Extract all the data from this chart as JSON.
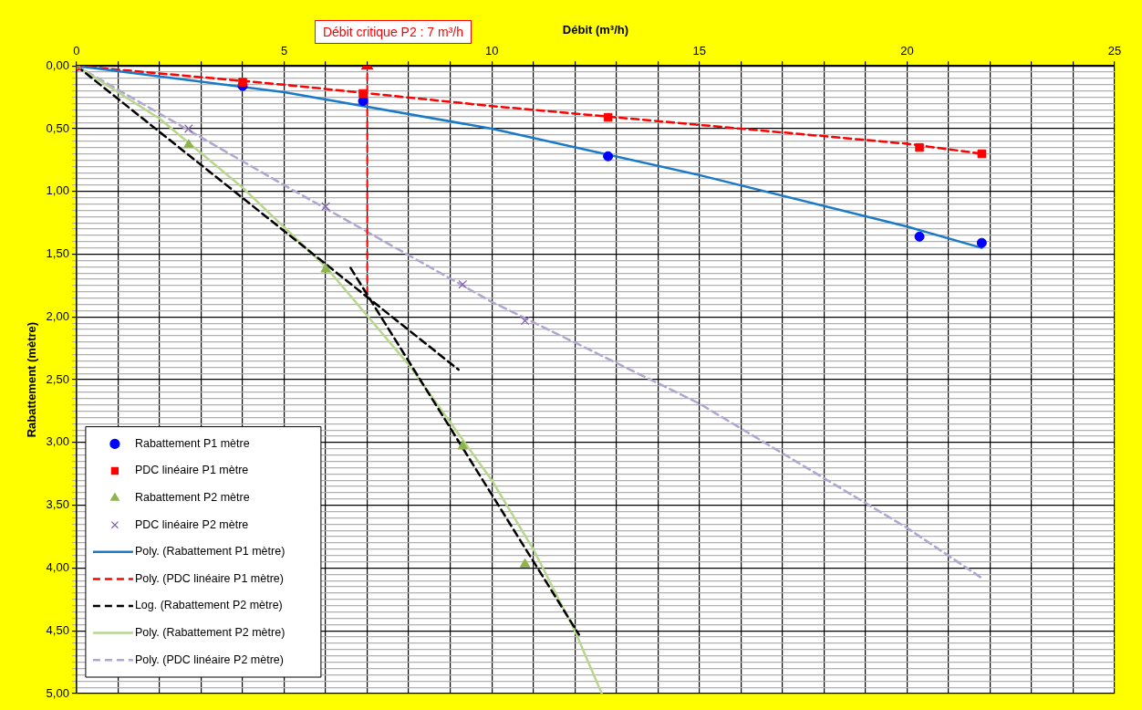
{
  "chart_data": {
    "type": "scatter",
    "xlabel": "Débit (m³/h)",
    "ylabel": "Rabattement (mètre)",
    "xlim": [
      0,
      25
    ],
    "xticks": [
      0,
      {
        "value": 1,
        "label": null
      },
      {
        "value": 2,
        "label": null
      },
      {
        "value": 3,
        "label": null
      },
      {
        "value": 4,
        "label": null
      },
      5,
      {
        "value": 6,
        "label": null
      },
      {
        "value": 7,
        "label": null
      },
      {
        "value": 8,
        "label": null
      },
      {
        "value": 9,
        "label": null
      },
      10,
      {
        "value": 11,
        "label": null
      },
      {
        "value": 12,
        "label": null
      },
      {
        "value": 13,
        "label": null
      },
      {
        "value": 14,
        "label": null
      },
      15,
      {
        "value": 16,
        "label": null
      },
      {
        "value": 17,
        "label": null
      },
      {
        "value": 18,
        "label": null
      },
      {
        "value": 19,
        "label": null
      },
      20,
      {
        "value": 21,
        "label": null
      },
      {
        "value": 22,
        "label": null
      },
      {
        "value": 23,
        "label": null
      },
      {
        "value": 24,
        "label": null
      },
      25
    ],
    "ylim": [
      5,
      0
    ],
    "yticks": [
      {
        "value": 0,
        "label": "0,00"
      },
      {
        "value": 0.05,
        "label": null
      },
      {
        "value": 0.1,
        "label": null
      },
      {
        "value": 0.15,
        "label": null
      },
      {
        "value": 0.2,
        "label": null
      },
      {
        "value": 0.25,
        "label": null
      },
      {
        "value": 0.3,
        "label": null
      },
      {
        "value": 0.35,
        "label": null
      },
      {
        "value": 0.4,
        "label": null
      },
      {
        "value": 0.45,
        "label": null
      },
      {
        "value": 0.5,
        "label": "0,50"
      },
      {
        "value": 0.55,
        "label": null
      },
      {
        "value": 0.6,
        "label": null
      },
      {
        "value": 0.65,
        "label": null
      },
      {
        "value": 0.7,
        "label": null
      },
      {
        "value": 0.75,
        "label": null
      },
      {
        "value": 0.8,
        "label": null
      },
      {
        "value": 0.85,
        "label": null
      },
      {
        "value": 0.9,
        "label": null
      },
      {
        "value": 0.95,
        "label": null
      },
      {
        "value": 1,
        "label": "1,00"
      },
      {
        "value": 1.05,
        "label": null
      },
      {
        "value": 1.1,
        "label": null
      },
      {
        "value": 1.15,
        "label": null
      },
      {
        "value": 1.2,
        "label": null
      },
      {
        "value": 1.25,
        "label": null
      },
      {
        "value": 1.3,
        "label": null
      },
      {
        "value": 1.35,
        "label": null
      },
      {
        "value": 1.4,
        "label": null
      },
      {
        "value": 1.45,
        "label": null
      },
      {
        "value": 1.5,
        "label": "1,50"
      },
      {
        "value": 1.55,
        "label": null
      },
      {
        "value": 1.6,
        "label": null
      },
      {
        "value": 1.65,
        "label": null
      },
      {
        "value": 1.7,
        "label": null
      },
      {
        "value": 1.75,
        "label": null
      },
      {
        "value": 1.8,
        "label": null
      },
      {
        "value": 1.85,
        "label": null
      },
      {
        "value": 1.9,
        "label": null
      },
      {
        "value": 1.95,
        "label": null
      },
      {
        "value": 2,
        "label": "2,00"
      },
      {
        "value": 2.05,
        "label": null
      },
      {
        "value": 2.1,
        "label": null
      },
      {
        "value": 2.15,
        "label": null
      },
      {
        "value": 2.2,
        "label": null
      },
      {
        "value": 2.25,
        "label": null
      },
      {
        "value": 2.3,
        "label": null
      },
      {
        "value": 2.35,
        "label": null
      },
      {
        "value": 2.4,
        "label": null
      },
      {
        "value": 2.45,
        "label": null
      },
      {
        "value": 2.5,
        "label": "2,50"
      },
      {
        "value": 2.55,
        "label": null
      },
      {
        "value": 2.6,
        "label": null
      },
      {
        "value": 2.65,
        "label": null
      },
      {
        "value": 2.7,
        "label": null
      },
      {
        "value": 2.75,
        "label": null
      },
      {
        "value": 2.8,
        "label": null
      },
      {
        "value": 2.85,
        "label": null
      },
      {
        "value": 2.9,
        "label": null
      },
      {
        "value": 2.95,
        "label": null
      },
      {
        "value": 3,
        "label": "3,00"
      },
      {
        "value": 3.05,
        "label": null
      },
      {
        "value": 3.1,
        "label": null
      },
      {
        "value": 3.15,
        "label": null
      },
      {
        "value": 3.2,
        "label": null
      },
      {
        "value": 3.25,
        "label": null
      },
      {
        "value": 3.3,
        "label": null
      },
      {
        "value": 3.35,
        "label": null
      },
      {
        "value": 3.4,
        "label": null
      },
      {
        "value": 3.45,
        "label": null
      },
      {
        "value": 3.5,
        "label": "3,50"
      },
      {
        "value": 3.55,
        "label": null
      },
      {
        "value": 3.6,
        "label": null
      },
      {
        "value": 3.65,
        "label": null
      },
      {
        "value": 3.7,
        "label": null
      },
      {
        "value": 3.75,
        "label": null
      },
      {
        "value": 3.8,
        "label": null
      },
      {
        "value": 3.85,
        "label": null
      },
      {
        "value": 3.9,
        "label": null
      },
      {
        "value": 3.95,
        "label": null
      },
      {
        "value": 4,
        "label": "4,00"
      },
      {
        "value": 4.05,
        "label": null
      },
      {
        "value": 4.1,
        "label": null
      },
      {
        "value": 4.15,
        "label": null
      },
      {
        "value": 4.2,
        "label": null
      },
      {
        "value": 4.25,
        "label": null
      },
      {
        "value": 4.3,
        "label": null
      },
      {
        "value": 4.35,
        "label": null
      },
      {
        "value": 4.4,
        "label": null
      },
      {
        "value": 4.45,
        "label": null
      },
      {
        "value": 4.5,
        "label": "4,50"
      },
      {
        "value": 4.55,
        "label": null
      },
      {
        "value": 4.6,
        "label": null
      },
      {
        "value": 4.65,
        "label": null
      },
      {
        "value": 4.7,
        "label": null
      },
      {
        "value": 4.75,
        "label": null
      },
      {
        "value": 4.8,
        "label": null
      },
      {
        "value": 4.85,
        "label": null
      },
      {
        "value": 4.9,
        "label": null
      },
      {
        "value": 4.95,
        "label": null
      },
      {
        "value": 5,
        "label": "5,00"
      }
    ],
    "grid": true,
    "legend": "bottom left",
    "annotations": [
      "Débit critique P2 : 7 m³/h"
    ],
    "series": [
      {
        "name": "Rabattement P1 mètre",
        "type": "scatter",
        "marker": "circle",
        "color": "#0000ff",
        "x": [
          0,
          4,
          6.9,
          12.8,
          20.3,
          21.8
        ],
        "values": [
          0,
          0.16,
          0.28,
          0.72,
          1.36,
          1.41
        ]
      },
      {
        "name": "PDC linéaire P1 mètre",
        "type": "scatter",
        "marker": "square",
        "color": "#ff0000",
        "x": [
          0,
          4,
          6.9,
          12.8,
          20.3,
          21.8
        ],
        "values": [
          0,
          0.13,
          0.22,
          0.41,
          0.65,
          0.7
        ]
      },
      {
        "name": "Rabattement P2 mètre",
        "type": "scatter",
        "marker": "triangle",
        "color": "#8eb44e",
        "x": [
          0,
          2.7,
          6,
          9.3,
          10.8
        ],
        "values": [
          0,
          0.63,
          1.62,
          3.03,
          3.97
        ]
      },
      {
        "name": "PDC linéaire P2 mètre",
        "type": "scatter",
        "marker": "cross",
        "color": "#7f60a8",
        "x": [
          0,
          2.7,
          6,
          9.3,
          10.8
        ],
        "values": [
          0,
          0.5,
          1.12,
          1.74,
          2.03
        ]
      },
      {
        "name": "Poly. (Rabattement P1 mètre)",
        "type": "line",
        "marker": "none",
        "line_style": "solid",
        "color": "#1a7ac8",
        "x": [
          0,
          5,
          10,
          15,
          20,
          21.8
        ],
        "values": [
          0,
          0.21,
          0.5,
          0.87,
          1.28,
          1.45
        ]
      },
      {
        "name": "Poly. (PDC linéaire P1 mètre)",
        "type": "line",
        "marker": "none",
        "line_style": "dashed",
        "color": "#ff0000",
        "x": [
          0,
          5,
          10,
          15,
          20,
          21.8
        ],
        "values": [
          0,
          0.15,
          0.32,
          0.47,
          0.62,
          0.7
        ]
      },
      {
        "name": "Log. (Rabattement P2 mètre)",
        "type": "line",
        "marker": "none",
        "line_style": "dashed",
        "color": "#000000",
        "x": [
          0,
          9.2
        ],
        "values": [
          0,
          2.42
        ]
      },
      {
        "type": "line",
        "marker": "none",
        "line_style": "dashed",
        "color": "#000000",
        "x": [
          6.6,
          12.1
        ],
        "values": [
          1.61,
          4.53
        ]
      },
      {
        "type": "line",
        "marker": "triangle",
        "line_style": "dashed",
        "color": "#ff0000",
        "x": [
          7,
          7
        ],
        "values": [
          1.82,
          0
        ]
      },
      {
        "name": "Poly. (Rabattement P2 mètre)",
        "type": "line",
        "marker": "none",
        "line_style": "solid",
        "color": "#b8d68e",
        "x": [
          0,
          2,
          4,
          6,
          8,
          10,
          11,
          12,
          12.65
        ],
        "values": [
          0,
          0.42,
          0.97,
          1.6,
          2.38,
          3.3,
          3.85,
          4.5,
          5
        ]
      },
      {
        "name": "Poly. (PDC linéaire P2 mètre)",
        "type": "line",
        "marker": "none",
        "line_style": "dashed",
        "color": "#b1a6d2",
        "x": [
          0,
          5,
          10,
          15,
          20,
          21.8
        ],
        "values": [
          0,
          0.95,
          1.88,
          2.69,
          3.68,
          4.08
        ]
      }
    ]
  }
}
